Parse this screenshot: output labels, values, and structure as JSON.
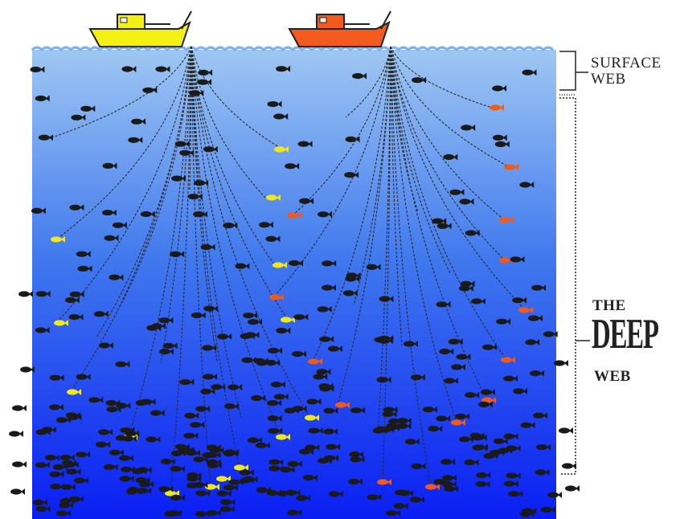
{
  "labels": {
    "surface_line1": "SURFACE",
    "surface_line2": "WEB",
    "deep_line1": "THE",
    "deep_line2": "DEEP",
    "deep_line3": "WEB"
  },
  "colors": {
    "sky": "#ffffff",
    "ocean_top": "#9fc7f2",
    "ocean_mid": "#3f78ee",
    "ocean_bottom": "#0a1ef2",
    "boat_left_hull": "#f4f014",
    "boat_right_hull": "#f25a1e",
    "fish_default": "#1a1a1a",
    "fish_yellow": "#f0e81a",
    "fish_orange": "#f05a1a",
    "net_line": "#2a2a2a"
  },
  "boats": [
    {
      "name": "boat-yellow",
      "color_key": "boat_left_hull"
    },
    {
      "name": "boat-orange",
      "color_key": "boat_right_hull"
    }
  ]
}
